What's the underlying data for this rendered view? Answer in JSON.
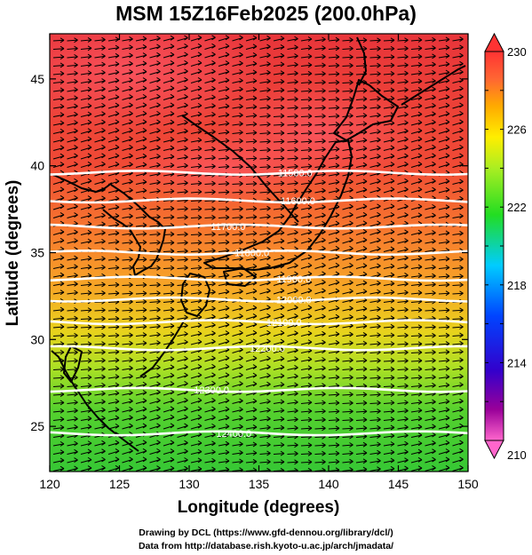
{
  "title": "MSM 15Z16Feb2025 (200.0hPa)",
  "x_axis": {
    "label": "Longitude (degrees)",
    "range": [
      120,
      150
    ],
    "ticks": [
      120,
      125,
      130,
      135,
      140,
      145,
      150
    ]
  },
  "y_axis": {
    "label": "Latitude  (degrees)",
    "range": [
      22.4,
      47.6
    ],
    "ticks": [
      25,
      30,
      35,
      40,
      45
    ]
  },
  "colorbar": {
    "range": [
      210,
      230
    ],
    "ticks": [
      210,
      214,
      218,
      222,
      226,
      230
    ],
    "stops": [
      "#ff66cc",
      "#990099",
      "#3300cc",
      "#0044ff",
      "#00ccff",
      "#22dd22",
      "#aaee22",
      "#ffee00",
      "#ffaa00",
      "#ff6633",
      "#ff3333"
    ]
  },
  "contours": [
    {
      "label": "11500.0",
      "lat": 39.6,
      "label_lon": 137.6
    },
    {
      "label": "11600.0",
      "lat": 38.0,
      "label_lon": 137.8
    },
    {
      "label": "11700.0",
      "lat": 36.5,
      "label_lon": 132.8
    },
    {
      "label": "11800.0",
      "lat": 35.0,
      "label_lon": 134.5
    },
    {
      "label": "11900.0",
      "lat": 33.5,
      "label_lon": 137.5
    },
    {
      "label": "12000.0",
      "lat": 32.3,
      "label_lon": 137.5
    },
    {
      "label": "12100.0",
      "lat": 31.0,
      "label_lon": 136.8
    },
    {
      "label": "12200.0",
      "lat": 29.5,
      "label_lon": 135.6
    },
    {
      "label": "12300.0",
      "lat": 27.1,
      "label_lon": 131.6
    },
    {
      "label": "12400.0",
      "lat": 24.6,
      "label_lon": 133.2
    }
  ],
  "credits": [
    "Drawing by DCL (https://www.gfd-dennou.org/library/dcl/)",
    "Data from http://database.rish.kyoto-u.ac.jp/arch/jmadata/"
  ]
}
